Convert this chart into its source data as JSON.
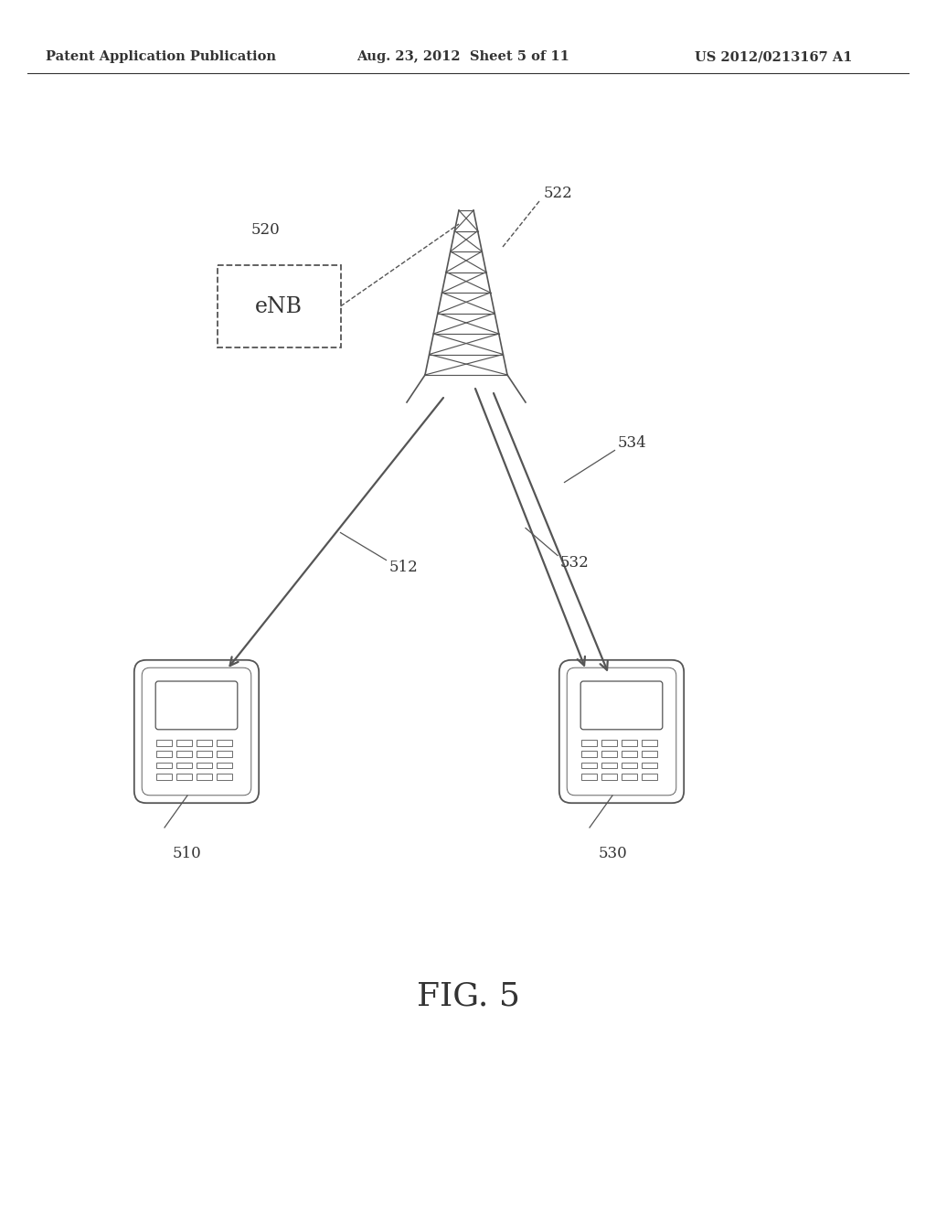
{
  "bg_color": "#ffffff",
  "header_left": "Patent Application Publication",
  "header_mid": "Aug. 23, 2012  Sheet 5 of 11",
  "header_right": "US 2012/0213167 A1",
  "fig_label": "FIG. 5",
  "enb_label": "eNB",
  "label_520": "520",
  "label_522": "522",
  "label_510": "510",
  "label_530": "530",
  "label_512": "512",
  "label_532": "532",
  "label_534": "534",
  "text_color": "#333333",
  "line_color": "#555555",
  "font_size_header": 10.5,
  "font_size_labels": 12,
  "font_size_enb": 17,
  "font_size_fig": 26
}
